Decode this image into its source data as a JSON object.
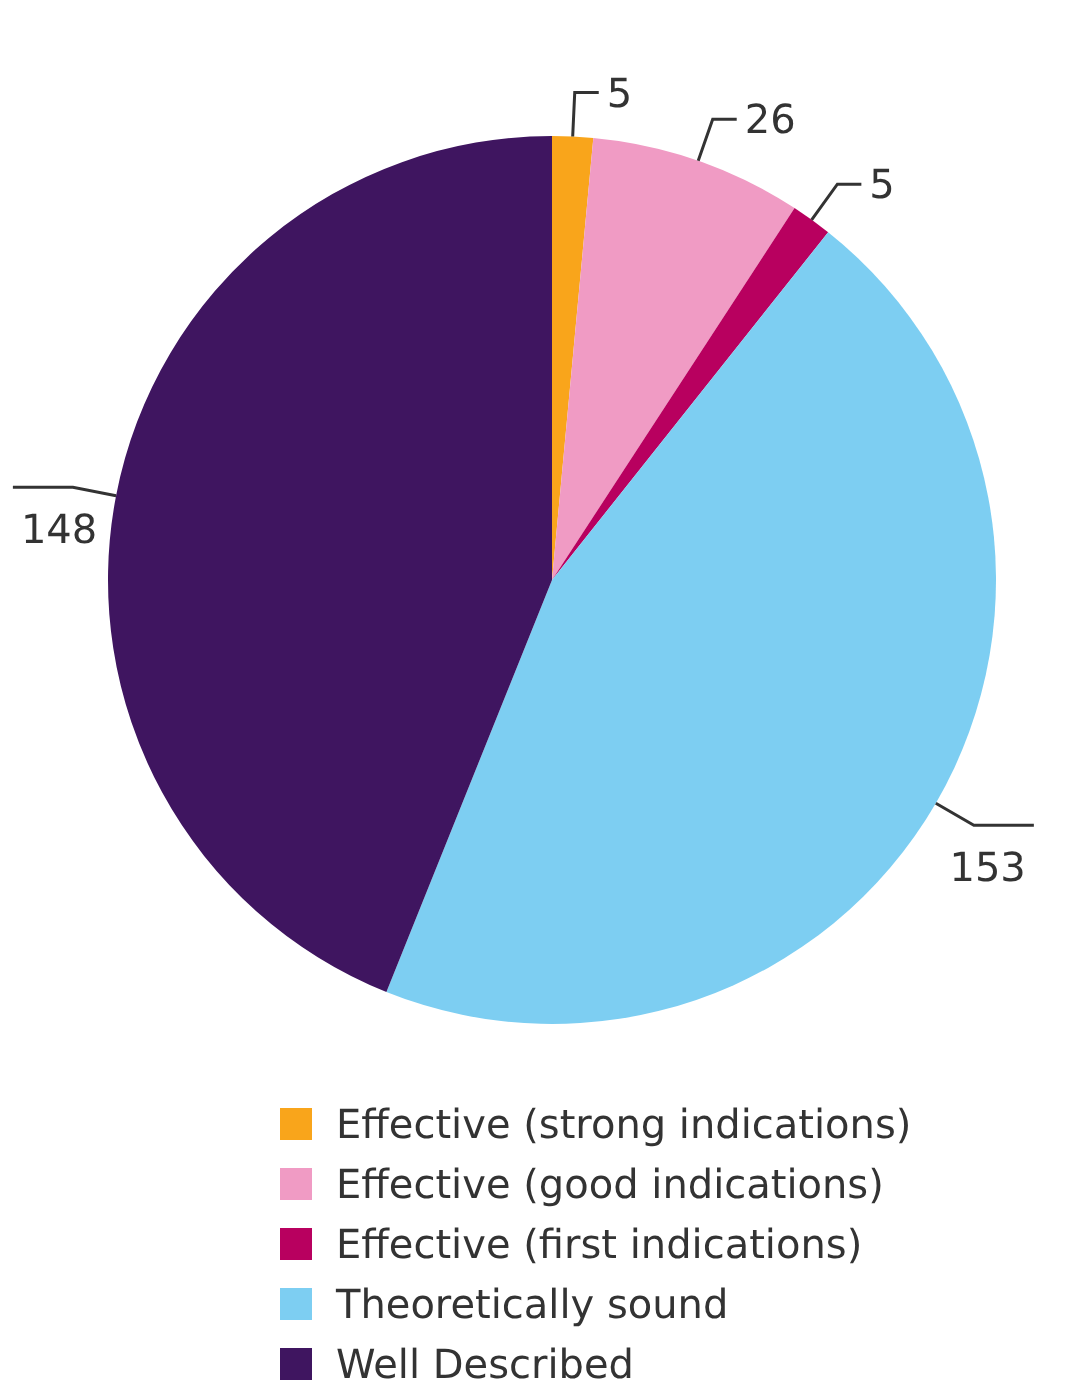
{
  "chart_data": {
    "type": "pie",
    "categories": [
      "Effective (strong indications)",
      "Effective (good indications)",
      "Effective (first indications)",
      "Theoretically sound",
      "Well Described"
    ],
    "values": [
      5,
      26,
      5,
      153,
      148
    ],
    "colors": [
      "#f9a51b",
      "#f09bc4",
      "#b8005f",
      "#7dcef2",
      "#3f1560"
    ],
    "data_labels": true,
    "legend": "bottom"
  }
}
